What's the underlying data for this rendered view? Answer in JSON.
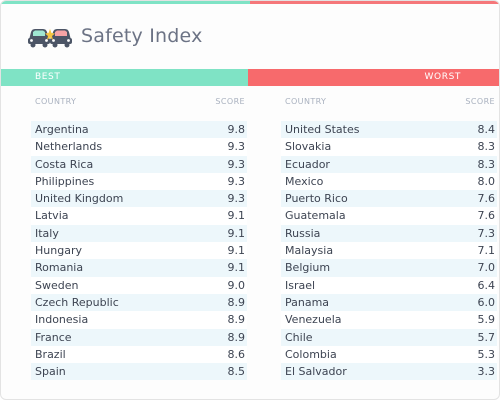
{
  "header": {
    "title": "Safety Index",
    "logo_icon": "cars-logo-icon"
  },
  "colors": {
    "best": "#7fe3c5",
    "worst": "#f76a6c",
    "stripe": "#edf7fb"
  },
  "chart_data": {
    "type": "table",
    "title": "Safety Index",
    "tables": [
      {
        "label": "BEST",
        "columns": [
          "COUNTRY",
          "SCORE"
        ],
        "rows": [
          {
            "country": "Argentina",
            "score": "9.8"
          },
          {
            "country": "Netherlands",
            "score": "9.3"
          },
          {
            "country": "Costa Rica",
            "score": "9.3"
          },
          {
            "country": "Philippines",
            "score": "9.3"
          },
          {
            "country": "United Kingdom",
            "score": "9.3"
          },
          {
            "country": "Latvia",
            "score": "9.1"
          },
          {
            "country": "Italy",
            "score": "9.1"
          },
          {
            "country": "Hungary",
            "score": "9.1"
          },
          {
            "country": "Romania",
            "score": "9.1"
          },
          {
            "country": "Sweden",
            "score": "9.0"
          },
          {
            "country": "Czech Republic",
            "score": "8.9"
          },
          {
            "country": "Indonesia",
            "score": "8.9"
          },
          {
            "country": "France",
            "score": "8.9"
          },
          {
            "country": "Brazil",
            "score": "8.6"
          },
          {
            "country": "Spain",
            "score": "8.5"
          }
        ]
      },
      {
        "label": "WORST",
        "columns": [
          "COUNTRY",
          "SCORE"
        ],
        "rows": [
          {
            "country": "United States",
            "score": "8.4"
          },
          {
            "country": "Slovakia",
            "score": "8.3"
          },
          {
            "country": "Ecuador",
            "score": "8.3"
          },
          {
            "country": "Mexico",
            "score": "8.0"
          },
          {
            "country": "Puerto Rico",
            "score": "7.6"
          },
          {
            "country": "Guatemala",
            "score": "7.6"
          },
          {
            "country": "Russia",
            "score": "7.3"
          },
          {
            "country": "Malaysia",
            "score": "7.1"
          },
          {
            "country": "Belgium",
            "score": "7.0"
          },
          {
            "country": "Israel",
            "score": "6.4"
          },
          {
            "country": "Panama",
            "score": "6.0"
          },
          {
            "country": "Venezuela",
            "score": "5.9"
          },
          {
            "country": "Chile",
            "score": "5.7"
          },
          {
            "country": "Colombia",
            "score": "5.3"
          },
          {
            "country": "El Salvador",
            "score": "3.3"
          }
        ]
      }
    ]
  }
}
